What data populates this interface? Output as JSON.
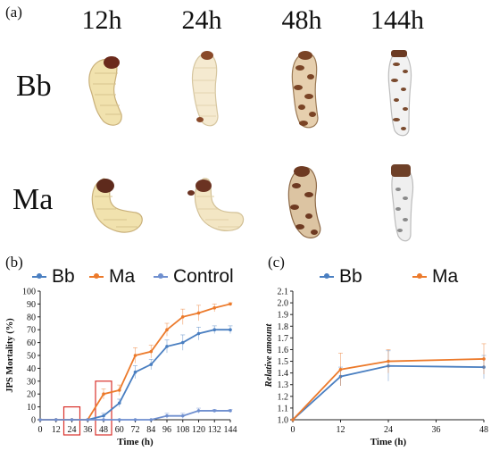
{
  "figure": {
    "panel_a": "(a)",
    "panel_b": "(b)",
    "panel_c": "(c)",
    "time_labels": [
      "12h",
      "24h",
      "48h",
      "144h"
    ],
    "row_labels": [
      "Bb",
      "Ma"
    ]
  },
  "colors": {
    "bb": "#4a7fc1",
    "ma": "#ec7a2b",
    "control": "#6f8fcf",
    "highlight": "#d9312b"
  },
  "chart_data": [
    {
      "type": "line",
      "panel": "(b)",
      "xlabel": "Time (h)",
      "ylabel": "JPS Mortality (%)",
      "x": [
        0,
        12,
        24,
        36,
        48,
        60,
        72,
        84,
        96,
        108,
        120,
        132,
        144
      ],
      "x_ticks": [
        0,
        12,
        24,
        36,
        48,
        60,
        72,
        84,
        96,
        108,
        120,
        132,
        144
      ],
      "ylim": [
        0,
        100
      ],
      "y_ticks": [
        0,
        10,
        20,
        30,
        40,
        50,
        60,
        70,
        80,
        90,
        100
      ],
      "legend": [
        "Bb",
        "Ma",
        "Control"
      ],
      "legend_position": "top",
      "highlighted_x": [
        24,
        48
      ],
      "series": [
        {
          "name": "Bb",
          "values": [
            0,
            0,
            0,
            0,
            3,
            13,
            37,
            43,
            57,
            60,
            67,
            70,
            70
          ],
          "errors": [
            0,
            0,
            0,
            0,
            2,
            3,
            5,
            4,
            5,
            6,
            5,
            3,
            3
          ]
        },
        {
          "name": "Ma",
          "values": [
            0,
            0,
            0,
            0,
            20,
            23,
            50,
            53,
            70,
            80,
            83,
            87,
            90
          ],
          "errors": [
            0,
            0,
            0,
            0,
            4,
            4,
            6,
            5,
            5,
            6,
            6,
            3,
            1
          ]
        },
        {
          "name": "Control",
          "values": [
            0,
            0,
            0,
            0,
            0,
            0,
            0,
            0,
            3,
            3,
            7,
            7,
            7
          ],
          "errors": [
            0,
            0,
            0,
            0,
            0,
            0,
            0,
            0,
            2,
            2,
            2,
            1,
            1
          ]
        }
      ]
    },
    {
      "type": "line",
      "panel": "(c)",
      "xlabel": "Time (h)",
      "ylabel": "Relative amount",
      "x": [
        0,
        12,
        24,
        48
      ],
      "x_ticks": [
        0,
        12,
        24,
        36,
        48
      ],
      "ylim": [
        1.0,
        2.1
      ],
      "y_ticks": [
        "1.0",
        "1.1",
        "1.2",
        "1.3",
        "1.4",
        "1.5",
        "1.6",
        "1.7",
        "1.8",
        "1.9",
        "2.0",
        "2.1"
      ],
      "legend": [
        "Bb",
        "Ma"
      ],
      "legend_position": "top",
      "series": [
        {
          "name": "Bb",
          "values": [
            1.0,
            1.37,
            1.46,
            1.45
          ],
          "errors": [
            0,
            0.08,
            0.13,
            0.1
          ]
        },
        {
          "name": "Ma",
          "values": [
            1.0,
            1.43,
            1.5,
            1.52
          ],
          "errors": [
            0,
            0.14,
            0.1,
            0.13
          ]
        }
      ]
    }
  ]
}
